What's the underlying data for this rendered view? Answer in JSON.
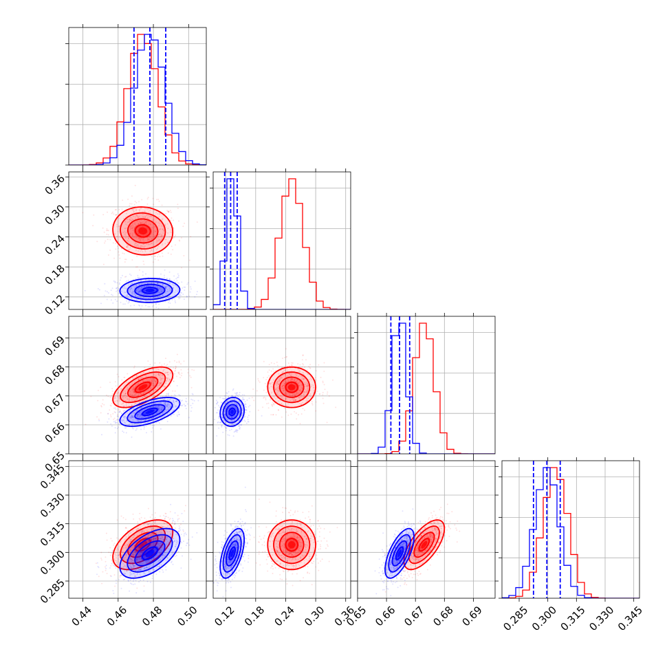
{
  "chart_data": {
    "type": "corner",
    "colors": {
      "series_a": "#ff0000",
      "series_b": "#0000ff",
      "grid": "#b0b0b0",
      "axis": "#000000"
    },
    "parameters": [
      {
        "range": [
          0.432,
          0.51
        ],
        "ticks": [
          "0.44",
          "0.46",
          "0.48",
          "0.50"
        ],
        "tick_values": [
          0.44,
          0.46,
          0.48,
          0.5
        ],
        "quantiles_b": [
          0.469,
          0.478,
          0.487
        ]
      },
      {
        "range": [
          0.095,
          0.37
        ],
        "ticks": [
          "0.12",
          "0.18",
          "0.24",
          "0.30",
          "0.36"
        ],
        "tick_values": [
          0.12,
          0.18,
          0.24,
          0.3,
          0.36
        ],
        "quantiles_b": [
          0.118,
          0.13,
          0.143
        ]
      },
      {
        "range": [
          0.65,
          0.6975
        ],
        "ticks": [
          "0.65",
          "0.66",
          "0.67",
          "0.68",
          "0.69"
        ],
        "tick_values": [
          0.65,
          0.66,
          0.67,
          0.68,
          0.69
        ],
        "quantiles_b": [
          0.6615,
          0.6645,
          0.668
        ]
      },
      {
        "range": [
          0.276,
          0.348
        ],
        "ticks": [
          "0.285",
          "0.300",
          "0.315",
          "0.330",
          "0.345"
        ],
        "tick_values": [
          0.285,
          0.3,
          0.315,
          0.33,
          0.345
        ],
        "quantiles_b": [
          0.2925,
          0.2995,
          0.3065
        ]
      }
    ],
    "series": [
      {
        "name": "",
        "color": "#ff0000",
        "mean": [
          0.474,
          0.252,
          0.673,
          0.304
        ],
        "sd": [
          0.0085,
          0.024,
          0.0035,
          0.0065
        ],
        "corr": {
          "1-0": -0.05,
          "2-0": 0.6,
          "2-1": 0.0,
          "3-0": 0.5,
          "3-1": 0.0,
          "3-2": 0.65
        }
      },
      {
        "name": "",
        "color": "#0000ff",
        "mean": [
          0.478,
          0.133,
          0.6645,
          0.2995
        ],
        "sd": [
          0.0085,
          0.012,
          0.0025,
          0.0065
        ],
        "corr": {
          "1-0": 0.05,
          "2-0": 0.6,
          "2-1": 0.1,
          "3-0": 0.55,
          "3-1": 0.55,
          "3-2": 0.65
        }
      }
    ],
    "grid": true,
    "title": "",
    "xlabel": "",
    "ylabel": ""
  }
}
